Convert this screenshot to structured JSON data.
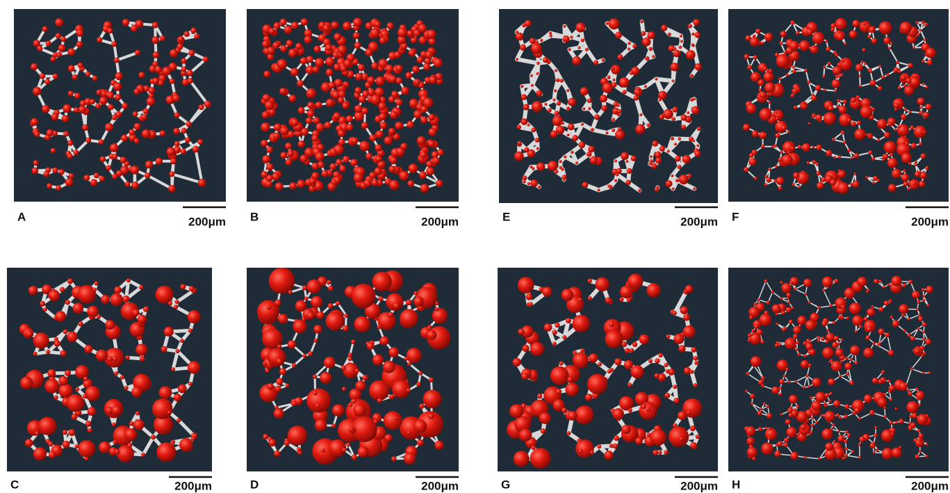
{
  "panels": [
    {
      "label": "A",
      "scale": "200μm"
    },
    {
      "label": "B",
      "scale": "200μm"
    },
    {
      "label": "E",
      "scale": "200μm"
    },
    {
      "label": "F",
      "scale": "200μm"
    },
    {
      "label": "C",
      "scale": "200μm"
    },
    {
      "label": "D",
      "scale": "200μm"
    },
    {
      "label": "G",
      "scale": "200μm"
    },
    {
      "label": "H",
      "scale": "200μm"
    }
  ]
}
